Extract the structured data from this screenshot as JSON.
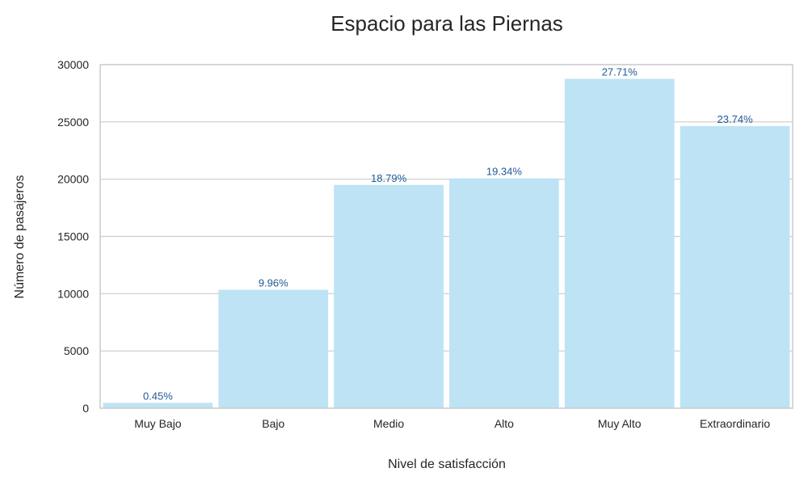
{
  "chart_data": {
    "type": "bar",
    "title": "Espacio para las Piernas",
    "xlabel": "Nivel de satisfacción",
    "ylabel": "Número de pasajeros",
    "categories": [
      "Muy Bajo",
      "Bajo",
      "Medio",
      "Alto",
      "Muy Alto",
      "Extraordinario"
    ],
    "values": [
      467,
      10340,
      19500,
      20070,
      28760,
      24640
    ],
    "data_labels": [
      "0.45%",
      "9.96%",
      "18.79%",
      "19.34%",
      "27.71%",
      "23.74%"
    ],
    "ylim": [
      0,
      30000
    ],
    "yticks": [
      0,
      5000,
      10000,
      15000,
      20000,
      25000,
      30000
    ],
    "grid": true,
    "bar_color": "#bde3f5",
    "label_color": "#1f5a96"
  }
}
